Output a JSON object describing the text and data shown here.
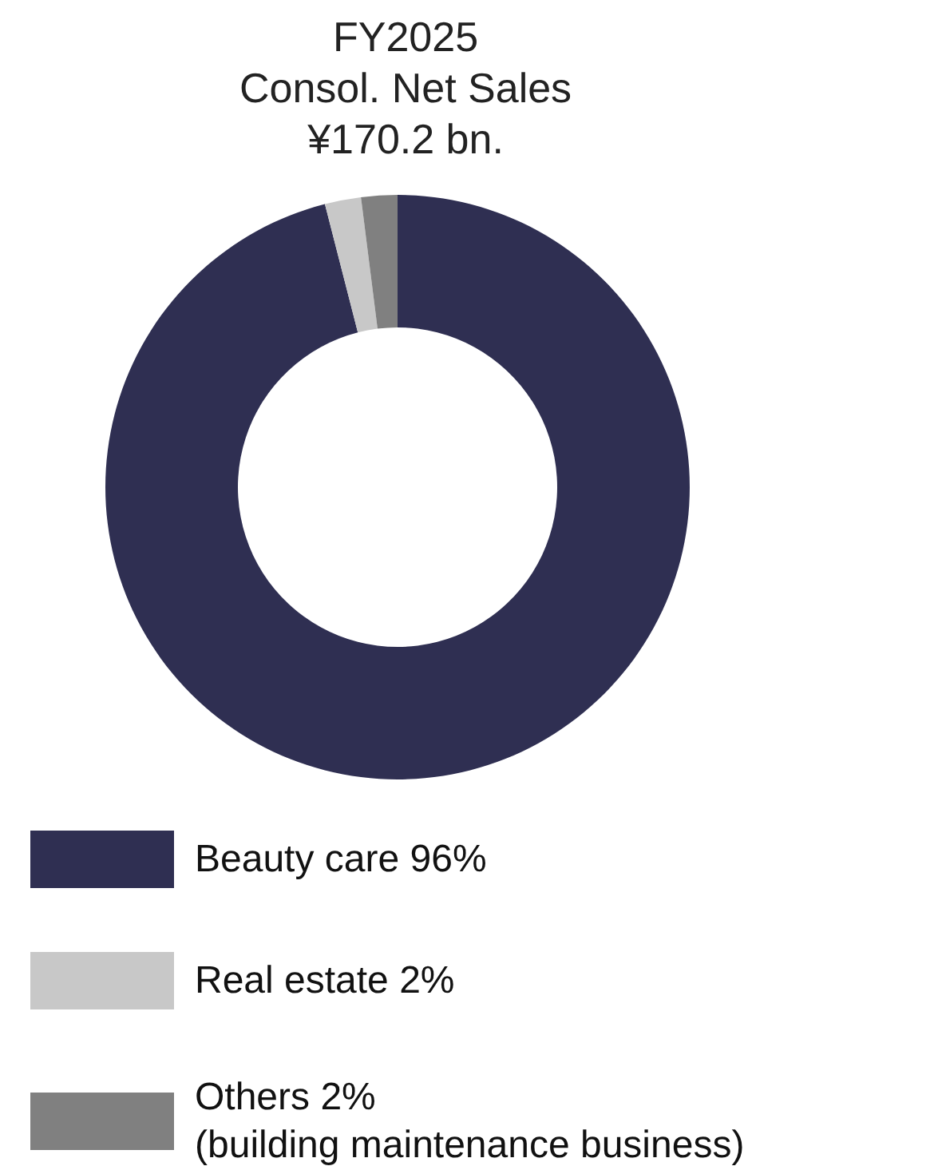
{
  "chart_data": {
    "type": "donut",
    "title": "FY2025\nConsol. Net Sales\n¥170.2 bn.",
    "categories": [
      "Beauty care 96%",
      "Real estate 2%",
      "Others 2%\n(building maintenance business)"
    ],
    "values": [
      96,
      2,
      2
    ],
    "colors": [
      "#2f2f52",
      "#c8c8c8",
      "#808080"
    ],
    "legend": "bottom"
  }
}
